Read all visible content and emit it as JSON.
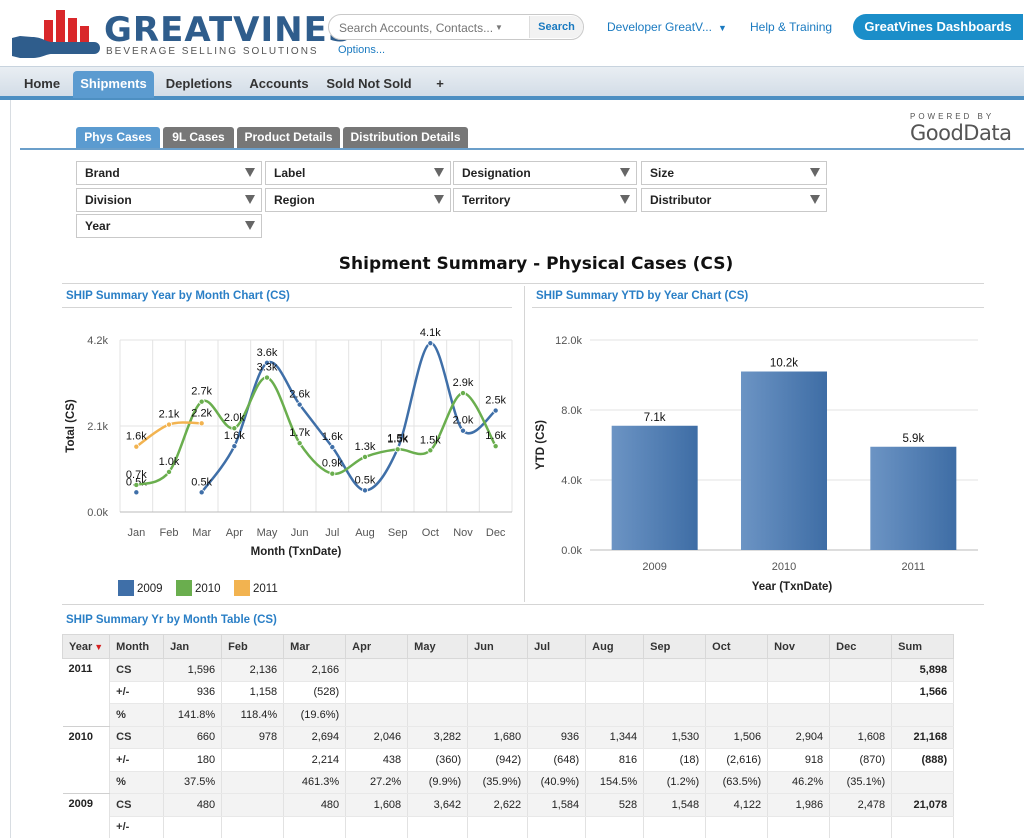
{
  "header": {
    "logo_name": "GREATVINES",
    "logo_tagline": "BEVERAGE SELLING SOLUTIONS",
    "search_placeholder": "Search Accounts, Contacts...",
    "search_button": "Search",
    "options_link": "Options...",
    "user_menu": "Developer GreatV...",
    "help_link": "Help & Training",
    "dashboards_button": "GreatVines Dashboards"
  },
  "nav": {
    "tabs": [
      {
        "label": "Home"
      },
      {
        "label": "Shipments",
        "active": true
      },
      {
        "label": "Depletions"
      },
      {
        "label": "Accounts"
      },
      {
        "label": "Sold Not Sold"
      },
      {
        "label": "+"
      }
    ]
  },
  "branding": {
    "powered_by": "POWERED BY",
    "gooddata": "GoodData"
  },
  "subtabs": [
    {
      "label": "Phys Cases",
      "active": true
    },
    {
      "label": "9L Cases"
    },
    {
      "label": "Product Details"
    },
    {
      "label": "Distribution Details"
    }
  ],
  "filters": [
    "Brand",
    "Label",
    "Designation",
    "Size",
    "Division",
    "Region",
    "Territory",
    "Distributor",
    "Year"
  ],
  "page_title": "Shipment Summary - Physical Cases (CS)",
  "line_section_title": "SHIP Summary Year by Month Chart (CS)",
  "bar_section_title": "SHIP Summary YTD by Year Chart (CS)",
  "table_section_title": "SHIP Summary Yr by Month Table (CS)",
  "chart_data": [
    {
      "type": "line",
      "xlabel": "Month (TxnDate)",
      "ylabel": "Total (CS)",
      "categories": [
        "Jan",
        "Feb",
        "Mar",
        "Apr",
        "May",
        "Jun",
        "Jul",
        "Aug",
        "Sep",
        "Oct",
        "Nov",
        "Dec"
      ],
      "yticks": [
        "0.0k",
        "2.1k",
        "4.2k"
      ],
      "ylim": [
        0,
        4200
      ],
      "grid": true,
      "legend": "bottom",
      "series": [
        {
          "name": "2009",
          "color": "#3f6fa8",
          "values": [
            480,
            null,
            480,
            1608,
            3642,
            2622,
            1584,
            528,
            1548,
            4122,
            1986,
            2478
          ],
          "labels": [
            "0.5k",
            "",
            "0.5k",
            "1.6k",
            "3.6k",
            "2.6k",
            "1.6k",
            "0.5k",
            "1.5k",
            "4.1k",
            "2.0k",
            "2.5k"
          ]
        },
        {
          "name": "2010",
          "color": "#6aae4e",
          "values": [
            660,
            978,
            2694,
            2046,
            3282,
            1680,
            936,
            1344,
            1530,
            1506,
            2904,
            1608
          ],
          "labels": [
            "0.7k",
            "1.0k",
            "2.7k",
            "2.0k",
            "3.3k",
            "1.7k",
            "0.9k",
            "1.3k",
            "1.5k",
            "1.5k",
            "2.9k",
            "1.6k"
          ]
        },
        {
          "name": "2011",
          "color": "#f2b350",
          "values": [
            1596,
            2136,
            2166,
            null,
            null,
            null,
            null,
            null,
            null,
            null,
            null,
            null
          ],
          "labels": [
            "1.6k",
            "2.1k",
            "2.2k",
            "",
            "",
            "",
            "",
            "",
            "",
            "",
            "",
            ""
          ]
        }
      ]
    },
    {
      "type": "bar",
      "xlabel": "Year (TxnDate)",
      "ylabel": "YTD (CS)",
      "categories": [
        "2009",
        "2010",
        "2011"
      ],
      "values": [
        7100,
        10200,
        5900
      ],
      "labels": [
        "7.1k",
        "10.2k",
        "5.9k"
      ],
      "yticks": [
        "0.0k",
        "4.0k",
        "8.0k",
        "12.0k"
      ],
      "ylim": [
        0,
        12000
      ],
      "grid": true
    }
  ],
  "table": {
    "headers": [
      "Year",
      "Month",
      "Jan",
      "Feb",
      "Mar",
      "Apr",
      "May",
      "Jun",
      "Jul",
      "Aug",
      "Sep",
      "Oct",
      "Nov",
      "Dec",
      "Sum"
    ],
    "groups": [
      {
        "year": "2011",
        "rows": [
          {
            "label": "CS",
            "cells": [
              "1,596",
              "2,136",
              "2,166",
              "",
              "",
              "",
              "",
              "",
              "",
              "",
              "",
              ""
            ],
            "sum": "5,898"
          },
          {
            "label": "+/-",
            "cells": [
              "936",
              "1,158",
              "(528)",
              "",
              "",
              "",
              "",
              "",
              "",
              "",
              "",
              ""
            ],
            "sum": "1,566"
          },
          {
            "label": "%",
            "cells": [
              "141.8%",
              "118.4%",
              "(19.6%)",
              "",
              "",
              "",
              "",
              "",
              "",
              "",
              "",
              ""
            ],
            "sum": ""
          }
        ]
      },
      {
        "year": "2010",
        "rows": [
          {
            "label": "CS",
            "cells": [
              "660",
              "978",
              "2,694",
              "2,046",
              "3,282",
              "1,680",
              "936",
              "1,344",
              "1,530",
              "1,506",
              "2,904",
              "1,608"
            ],
            "sum": "21,168"
          },
          {
            "label": "+/-",
            "cells": [
              "180",
              "",
              "2,214",
              "438",
              "(360)",
              "(942)",
              "(648)",
              "816",
              "(18)",
              "(2,616)",
              "918",
              "(870)"
            ],
            "sum": "(888)"
          },
          {
            "label": "%",
            "cells": [
              "37.5%",
              "",
              "461.3%",
              "27.2%",
              "(9.9%)",
              "(35.9%)",
              "(40.9%)",
              "154.5%",
              "(1.2%)",
              "(63.5%)",
              "46.2%",
              "(35.1%)"
            ],
            "sum": ""
          }
        ]
      },
      {
        "year": "2009",
        "rows": [
          {
            "label": "CS",
            "cells": [
              "480",
              "",
              "480",
              "1,608",
              "3,642",
              "2,622",
              "1,584",
              "528",
              "1,548",
              "4,122",
              "1,986",
              "2,478"
            ],
            "sum": "21,078"
          },
          {
            "label": "+/-",
            "cells": [
              "",
              "",
              "",
              "",
              "",
              "",
              "",
              "",
              "",
              "",
              "",
              ""
            ],
            "sum": ""
          }
        ]
      }
    ]
  }
}
